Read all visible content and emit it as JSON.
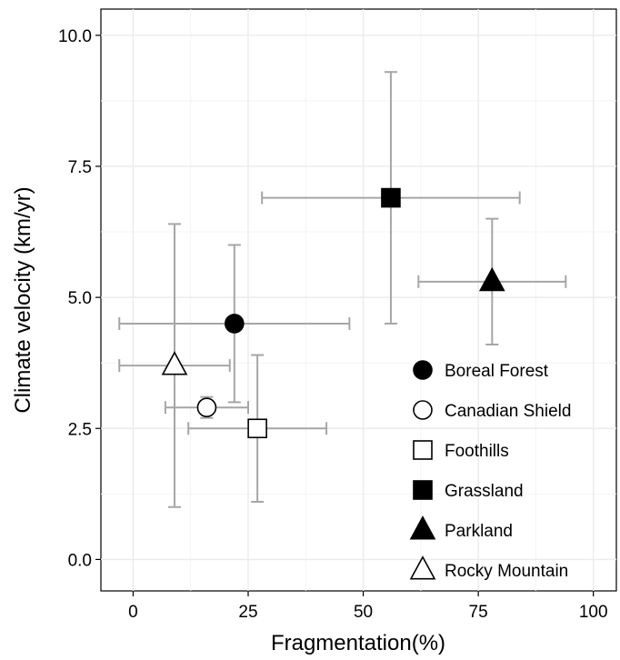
{
  "chart_data": {
    "type": "scatter",
    "title": "",
    "xlabel": "Fragmentation(%)",
    "ylabel": "Climate velocity (km/yr)",
    "xlim": [
      -7,
      105
    ],
    "ylim": [
      -0.6,
      10.5
    ],
    "xticks": [
      0,
      25,
      50,
      75,
      100
    ],
    "xtick_labels": [
      "0",
      "25",
      "50",
      "75",
      "100"
    ],
    "yticks": [
      0,
      2.5,
      5,
      7.5,
      10
    ],
    "ytick_labels": [
      "0.0",
      "2.5",
      "5.0",
      "7.5",
      "10.0"
    ],
    "grid": true,
    "legend_position": "inside-bottom-right",
    "errorbar_color": "#a6a6a6",
    "series": [
      {
        "name": "Boreal Forest",
        "marker": "circle",
        "fill": "filled",
        "x": 22,
        "y": 4.5,
        "x_low": -3,
        "x_high": 47,
        "y_low": 3.0,
        "y_high": 6.0
      },
      {
        "name": "Canadian Shield",
        "marker": "circle",
        "fill": "open",
        "x": 16,
        "y": 2.9,
        "x_low": 7,
        "x_high": 25,
        "y_low": 2.7,
        "y_high": 3.1
      },
      {
        "name": "Foothills",
        "marker": "square",
        "fill": "open",
        "x": 27,
        "y": 2.5,
        "x_low": 12,
        "x_high": 42,
        "y_low": 1.1,
        "y_high": 3.9
      },
      {
        "name": "Grassland",
        "marker": "square",
        "fill": "filled",
        "x": 56,
        "y": 6.9,
        "x_low": 28,
        "x_high": 84,
        "y_low": 4.5,
        "y_high": 9.3
      },
      {
        "name": "Parkland",
        "marker": "triangle",
        "fill": "filled",
        "x": 78,
        "y": 5.3,
        "x_low": 62,
        "x_high": 94,
        "y_low": 4.1,
        "y_high": 6.5
      },
      {
        "name": "Rocky Mountain",
        "marker": "triangle",
        "fill": "open",
        "x": 9,
        "y": 3.7,
        "x_low": -3,
        "x_high": 21,
        "y_low": 1.0,
        "y_high": 6.4
      }
    ]
  }
}
